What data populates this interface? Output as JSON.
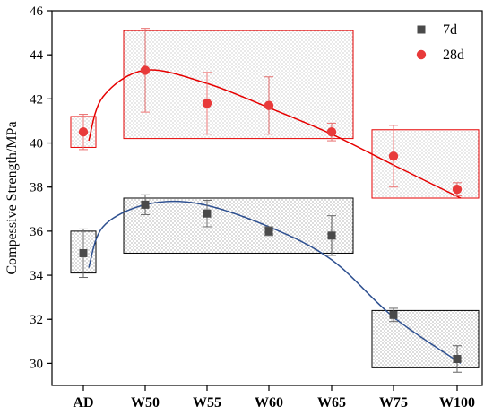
{
  "chart_data": {
    "type": "scatter",
    "title": "",
    "xlabel": "",
    "ylabel": "Compessive Strength/MPa",
    "categories": [
      "AD",
      "W50",
      "W55",
      "W60",
      "W65",
      "W75",
      "W100"
    ],
    "ylim": [
      29,
      46
    ],
    "yticks": [
      30,
      32,
      34,
      36,
      38,
      40,
      42,
      44,
      46
    ],
    "legend_position": "top-right",
    "series": [
      {
        "name": "7d",
        "marker": "square",
        "color": "#4a4a4a",
        "curve_color": "#2e5090",
        "values": [
          35.0,
          37.2,
          36.8,
          36.0,
          35.8,
          32.2,
          30.2
        ],
        "errors": [
          1.1,
          0.45,
          0.6,
          0.2,
          0.9,
          0.3,
          0.6
        ]
      },
      {
        "name": "28d",
        "marker": "circle",
        "color": "#e83a3a",
        "curve_color": "#e60000",
        "values": [
          40.5,
          43.3,
          41.8,
          41.7,
          40.5,
          39.4,
          37.9
        ],
        "errors": [
          0.8,
          1.9,
          1.4,
          1.3,
          0.4,
          1.4,
          0.3
        ]
      }
    ],
    "group_boxes": [
      {
        "series": "7d",
        "from": "AD",
        "to": "AD",
        "y_range": [
          34.1,
          36.0
        ]
      },
      {
        "series": "7d",
        "from": "W50",
        "to": "W65",
        "y_range": [
          35.0,
          37.5
        ]
      },
      {
        "series": "7d",
        "from": "W75",
        "to": "W100",
        "y_range": [
          29.8,
          32.4
        ]
      },
      {
        "series": "28d",
        "from": "AD",
        "to": "AD",
        "y_range": [
          39.8,
          41.2
        ]
      },
      {
        "series": "28d",
        "from": "W50",
        "to": "W65",
        "y_range": [
          40.2,
          45.1
        ]
      },
      {
        "series": "28d",
        "from": "W75",
        "to": "W100",
        "y_range": [
          37.5,
          40.6
        ]
      }
    ]
  }
}
